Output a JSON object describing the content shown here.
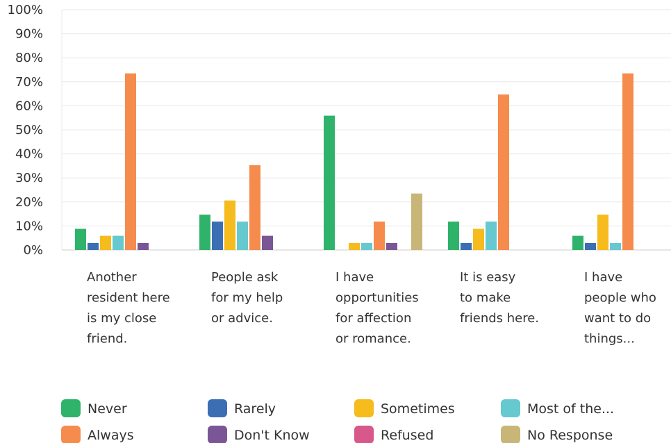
{
  "chart_data": {
    "type": "bar",
    "categories": [
      [
        "Another",
        "resident here",
        "is my close",
        "friend."
      ],
      [
        "People ask",
        "for my help",
        "or advice."
      ],
      [
        "I have",
        "opportunities",
        "for affection",
        "or romance."
      ],
      [
        "It is easy",
        "to make",
        "friends here."
      ],
      [
        "I have",
        "people who",
        "want to do",
        "things..."
      ]
    ],
    "series": [
      {
        "name": "Never",
        "color": "#2fb36b",
        "values": [
          8.8,
          14.7,
          55.9,
          11.8,
          5.9
        ]
      },
      {
        "name": "Rarely",
        "color": "#3c6eb4",
        "values": [
          2.9,
          11.8,
          0,
          2.9,
          2.9
        ]
      },
      {
        "name": "Sometimes",
        "color": "#f6bb1c",
        "values": [
          5.9,
          20.6,
          2.9,
          8.8,
          14.7
        ]
      },
      {
        "name": "Most of the...",
        "color": "#66c9cf",
        "values": [
          5.9,
          11.8,
          2.9,
          11.8,
          2.9
        ]
      },
      {
        "name": "Always",
        "color": "#f58b4c",
        "values": [
          73.5,
          35.3,
          11.8,
          64.7,
          73.5
        ]
      },
      {
        "name": "Don't Know",
        "color": "#7a5696",
        "values": [
          2.9,
          5.9,
          2.9,
          0,
          0
        ]
      },
      {
        "name": "Refused",
        "color": "#d8588c",
        "values": [
          0,
          0,
          0,
          0,
          0
        ]
      },
      {
        "name": "No Response",
        "color": "#c7b677",
        "values": [
          0,
          0,
          23.5,
          0,
          0
        ]
      }
    ],
    "yticks": [
      "0%",
      "10%",
      "20%",
      "30%",
      "40%",
      "50%",
      "60%",
      "70%",
      "80%",
      "90%",
      "100%"
    ],
    "ylim": [
      0,
      100
    ],
    "grid": true,
    "legend_position": "bottom",
    "xlabel": "",
    "ylabel": "",
    "title": ""
  },
  "colors": {
    "grid": "#e8e8e8",
    "axis": "#cccccc",
    "text": "#333333"
  }
}
